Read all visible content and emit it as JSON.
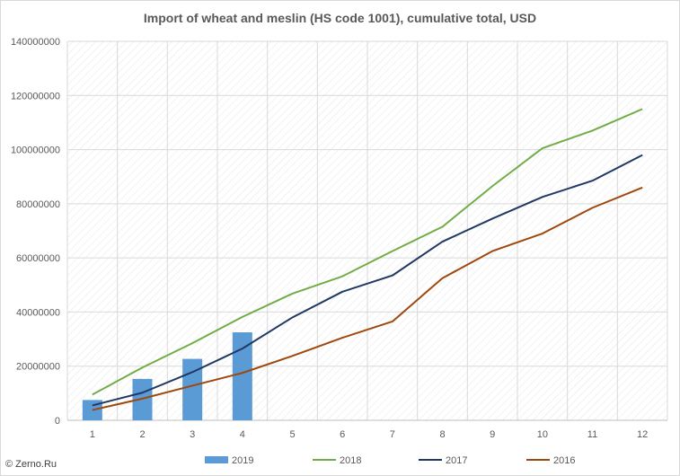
{
  "chart_data": {
    "type": "bar+line",
    "title": "Import of wheat and meslin (HS code 1001), cumulative total, USD",
    "x": [
      "1",
      "2",
      "3",
      "4",
      "5",
      "6",
      "7",
      "8",
      "9",
      "10",
      "11",
      "12"
    ],
    "ylim": [
      0,
      140000000
    ],
    "yticks": [
      "0",
      "20000000",
      "40000000",
      "60000000",
      "80000000",
      "100000000",
      "120000000",
      "140000000"
    ],
    "grid": true,
    "legend_position": "bottom",
    "series": [
      {
        "name": "2019",
        "type": "bar",
        "color": "#5b9bd5",
        "values": [
          7500000,
          15300000,
          22700000,
          32500000,
          null,
          null,
          null,
          null,
          null,
          null,
          null,
          null
        ]
      },
      {
        "name": "2018",
        "type": "line",
        "color": "#70ad47",
        "values": [
          9500000,
          19500000,
          28500000,
          38200000,
          46800000,
          53200000,
          62500000,
          71500000,
          86500000,
          100500000,
          107000000,
          115000000
        ]
      },
      {
        "name": "2017",
        "type": "line",
        "color": "#203864",
        "values": [
          5500000,
          10200000,
          17800000,
          26500000,
          38000000,
          47500000,
          53500000,
          66000000,
          74500000,
          82500000,
          88500000,
          98000000
        ]
      },
      {
        "name": "2016",
        "type": "line",
        "color": "#9e480e",
        "values": [
          3800000,
          8000000,
          12800000,
          17500000,
          23800000,
          30500000,
          36500000,
          52500000,
          62500000,
          69000000,
          78500000,
          86000000
        ]
      }
    ]
  },
  "credit": "© Zerno.Ru"
}
